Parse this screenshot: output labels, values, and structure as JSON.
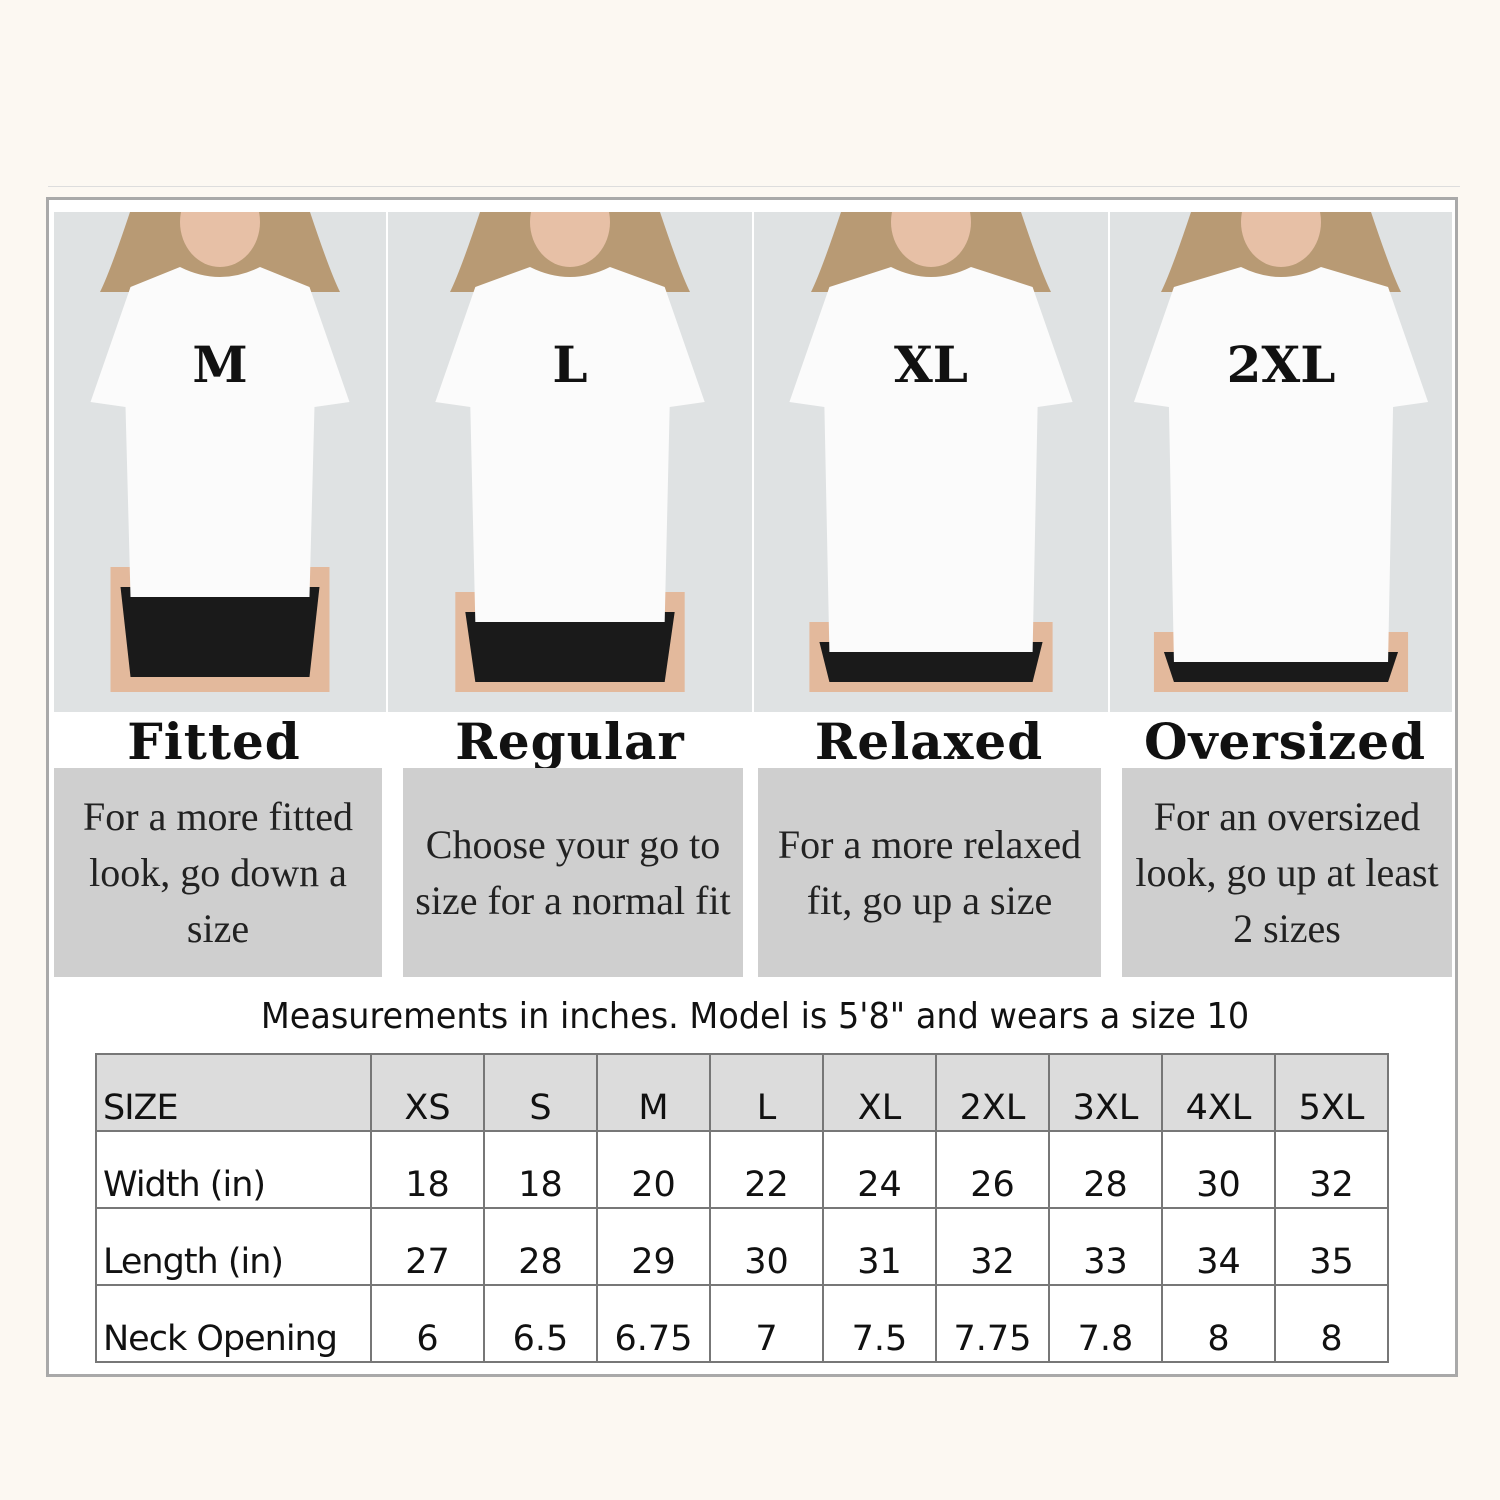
{
  "fits": [
    {
      "size": "M",
      "title": "Fitted",
      "description": "For a more fitted look, go down a size"
    },
    {
      "size": "L",
      "title": "Regular",
      "description": "Choose your go to size for a normal fit"
    },
    {
      "size": "XL",
      "title": "Relaxed",
      "description": "For a more relaxed fit, go up a size"
    },
    {
      "size": "2XL",
      "title": "Oversized",
      "description": "For an oversized look, go up at least 2 sizes"
    }
  ],
  "caption": "Measurements in inches. Model is 5'8\" and wears a size 10",
  "table": {
    "header": [
      "SIZE",
      "XS",
      "S",
      "M",
      "L",
      "XL",
      "2XL",
      "3XL",
      "4XL",
      "5XL"
    ],
    "rows": [
      [
        "Width (in)",
        "18",
        "18",
        "20",
        "22",
        "24",
        "26",
        "28",
        "30",
        "32"
      ],
      [
        "Length (in)",
        "27",
        "28",
        "29",
        "30",
        "31",
        "32",
        "33",
        "34",
        "35"
      ],
      [
        "Neck Opening",
        "6",
        "6.5",
        "6.75",
        "7",
        "7.5",
        "7.75",
        "7.8",
        "8",
        "8"
      ]
    ]
  },
  "colors": {
    "background": "#fcf8f2",
    "desc_box": "#cfcfcf",
    "header_row": "#dcdcdc",
    "photo_bg": "#dfe2e3"
  }
}
